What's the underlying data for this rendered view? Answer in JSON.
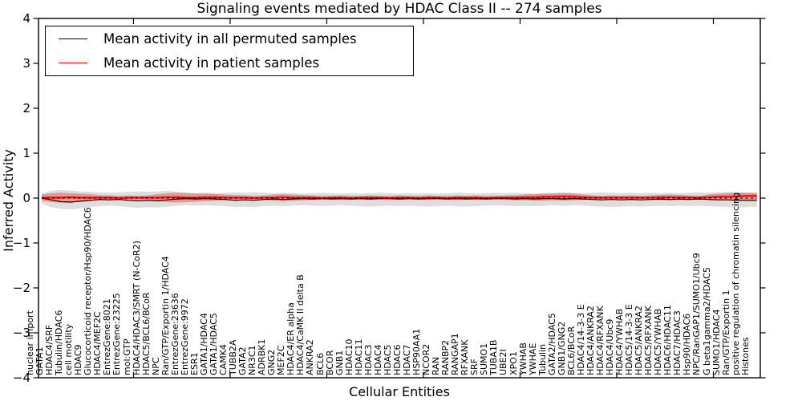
{
  "chart_data": {
    "type": "line",
    "title": "Signaling events mediated by HDAC Class II -- 274 samples",
    "xlabel": "Cellular Entities",
    "ylabel": "Inferred Activity",
    "ylim": [
      -4,
      4
    ],
    "yticks": [
      4,
      3,
      2,
      1,
      0,
      -1,
      -2,
      -3,
      -4
    ],
    "ytick_labels": [
      "4",
      "3",
      "2",
      "1",
      "0",
      "−1",
      "−2",
      "−3",
      "−4"
    ],
    "grid": false,
    "legend_position": "upper left",
    "categories": [
      "nuclear import",
      "GATA1",
      "HDAC4/SRF",
      "Tubulin/HDAC6",
      "cell motility",
      "HDAC9",
      "Glucocorticoid receptor/Hsp90/HDAC6",
      "HDAC4/MEF2C",
      "EntrezGene:8021",
      "EntrezGene:23225",
      "mol:GTP",
      "HDAC4/HDAC3/SMRT (N-CoR2)",
      "HDAC5/BCL6/BCoR",
      "NPC",
      "Ran/GTP/Exportin 1/HDAC4",
      "EntrezGene:23636",
      "EntrezGene:9972",
      "ESR1",
      "GATA1/HDAC4",
      "GATA1/HDAC5",
      "CAMK4",
      "TUBB2A",
      "GATA2",
      "NR3C1",
      "ADRBK1",
      "GNG2",
      "MEF2C",
      "HDAC4/ER alpha",
      "HDAC4/CaMK II delta B",
      "ANKRA2",
      "BCL6",
      "BCOR",
      "GNB1",
      "HDAC10",
      "HDAC11",
      "HDAC3",
      "HDAC4",
      "HDAC5",
      "HDAC6",
      "HDAC7",
      "HSP90AA1",
      "NCOR2",
      "RAN",
      "RANBP2",
      "RANGAP1",
      "RFXANK",
      "SRF",
      "SUMO1",
      "TUBA1B",
      "UBE2I",
      "XPO1",
      "YWHAB",
      "YWHAE",
      "Tubulin",
      "GATA2/HDAC5",
      "GNB1/GNG2",
      "BCL6/BCoR",
      "HDAC4/14-3-3 E",
      "HDAC4/ANKRA2",
      "HDAC4/RFXANK",
      "HDAC4/Ubc9",
      "HDAC4/YWHAB",
      "HDAC5/14-3-3 E",
      "HDAC5/ANKRA2",
      "HDAC5/RFXANK",
      "HDAC5/YWHAB",
      "HDAC6/HDAC11",
      "HDAC7/HDAC3",
      "Hsp90/HDAC6",
      "NPC/RanGAP1/SUMO1/Ubc9",
      "G beta1gamma2/HDAC5",
      "SUMO1/HDAC4",
      "Ran/GTP/Exportin 1",
      "positive regulation of chromatin silencing",
      "Histones"
    ],
    "series": [
      {
        "name": "Mean activity in all permuted samples",
        "color": "#000000",
        "values": [
          0.0,
          -0.04,
          -0.08,
          -0.09,
          -0.07,
          -0.05,
          -0.03,
          -0.04,
          -0.03,
          -0.05,
          -0.06,
          -0.05,
          -0.06,
          -0.04,
          -0.02,
          -0.01,
          -0.02,
          -0.01,
          -0.02,
          -0.03,
          -0.05,
          -0.04,
          -0.05,
          -0.03,
          -0.02,
          -0.03,
          -0.02,
          -0.01,
          -0.02,
          -0.01,
          -0.02,
          -0.01,
          -0.02,
          -0.01,
          -0.02,
          -0.01,
          -0.01,
          -0.02,
          -0.01,
          -0.02,
          -0.01,
          -0.01,
          -0.02,
          -0.01,
          -0.02,
          -0.01,
          -0.02,
          -0.01,
          -0.01,
          -0.02,
          -0.01,
          -0.02,
          -0.01,
          -0.01,
          -0.02,
          -0.01,
          -0.02,
          -0.03,
          -0.04,
          -0.03,
          -0.04,
          -0.03,
          -0.04,
          -0.03,
          -0.02,
          -0.03,
          -0.02,
          -0.03,
          -0.02,
          -0.03,
          -0.04,
          -0.04,
          -0.05,
          -0.05,
          -0.05
        ]
      },
      {
        "name": "Mean activity in patient samples",
        "color": "#ff0000",
        "values": [
          0.01,
          0.01,
          0.01,
          0.02,
          0.01,
          0.01,
          0.01,
          0.01,
          0.0,
          0.01,
          0.01,
          0.01,
          0.01,
          0.02,
          0.02,
          0.01,
          0.01,
          0.02,
          0.02,
          0.01,
          0.01,
          0.01,
          0.0,
          0.01,
          0.01,
          0.02,
          0.01,
          0.01,
          0.01,
          0.0,
          0.01,
          0.01,
          0.0,
          0.01,
          0.01,
          0.01,
          0.0,
          0.01,
          0.01,
          0.0,
          0.01,
          0.01,
          0.0,
          0.01,
          0.01,
          0.01,
          0.0,
          0.01,
          0.01,
          0.01,
          0.02,
          0.02,
          0.03,
          0.03,
          0.04,
          0.03,
          0.02,
          0.01,
          0.01,
          0.01,
          0.01,
          0.01,
          0.01,
          0.01,
          0.02,
          0.02,
          0.02,
          0.01,
          0.01,
          0.02,
          0.03,
          0.03,
          0.04,
          0.05,
          0.05
        ]
      }
    ],
    "bands": [
      {
        "name": "permuted-band",
        "color": "#000000",
        "opacity": 0.13,
        "upper": [
          0.1,
          0.16,
          0.18,
          0.17,
          0.15,
          0.14,
          0.13,
          0.12,
          0.13,
          0.14,
          0.15,
          0.14,
          0.15,
          0.16,
          0.14,
          0.12,
          0.11,
          0.12,
          0.11,
          0.12,
          0.13,
          0.12,
          0.13,
          0.12,
          0.11,
          0.12,
          0.11,
          0.1,
          0.11,
          0.12,
          0.11,
          0.1,
          0.11,
          0.1,
          0.11,
          0.12,
          0.11,
          0.1,
          0.11,
          0.1,
          0.11,
          0.1,
          0.11,
          0.12,
          0.11,
          0.1,
          0.11,
          0.12,
          0.11,
          0.12,
          0.11,
          0.1,
          0.11,
          0.12,
          0.13,
          0.12,
          0.11,
          0.12,
          0.13,
          0.12,
          0.11,
          0.12,
          0.11,
          0.12,
          0.11,
          0.12,
          0.11,
          0.12,
          0.13,
          0.12,
          0.13,
          0.14,
          0.13,
          0.12,
          0.11
        ],
        "lower": [
          -0.12,
          -0.2,
          -0.24,
          -0.25,
          -0.23,
          -0.2,
          -0.18,
          -0.17,
          -0.18,
          -0.2,
          -0.22,
          -0.2,
          -0.21,
          -0.19,
          -0.17,
          -0.16,
          -0.17,
          -0.16,
          -0.17,
          -0.18,
          -0.2,
          -0.19,
          -0.2,
          -0.18,
          -0.17,
          -0.18,
          -0.17,
          -0.16,
          -0.17,
          -0.18,
          -0.17,
          -0.16,
          -0.17,
          -0.18,
          -0.19,
          -0.18,
          -0.17,
          -0.18,
          -0.17,
          -0.18,
          -0.19,
          -0.18,
          -0.17,
          -0.18,
          -0.19,
          -0.18,
          -0.17,
          -0.16,
          -0.17,
          -0.18,
          -0.17,
          -0.18,
          -0.17,
          -0.16,
          -0.17,
          -0.16,
          -0.17,
          -0.18,
          -0.19,
          -0.2,
          -0.19,
          -0.18,
          -0.19,
          -0.18,
          -0.17,
          -0.18,
          -0.17,
          -0.18,
          -0.17,
          -0.18,
          -0.19,
          -0.2,
          -0.21,
          -0.2,
          -0.19
        ]
      },
      {
        "name": "patient-band",
        "color": "#ff0000",
        "opacity": 0.32,
        "upper": [
          0.08,
          0.11,
          0.12,
          0.11,
          0.1,
          0.09,
          0.07,
          0.06,
          0.05,
          0.06,
          0.05,
          0.06,
          0.09,
          0.11,
          0.12,
          0.11,
          0.1,
          0.1,
          0.09,
          0.08,
          0.07,
          0.06,
          0.05,
          0.06,
          0.08,
          0.09,
          0.08,
          0.07,
          0.06,
          0.05,
          0.05,
          0.06,
          0.05,
          0.05,
          0.06,
          0.05,
          0.05,
          0.06,
          0.05,
          0.05,
          0.06,
          0.05,
          0.05,
          0.06,
          0.05,
          0.06,
          0.05,
          0.05,
          0.06,
          0.07,
          0.08,
          0.09,
          0.1,
          0.1,
          0.11,
          0.1,
          0.08,
          0.06,
          0.05,
          0.06,
          0.05,
          0.06,
          0.05,
          0.06,
          0.07,
          0.08,
          0.07,
          0.06,
          0.05,
          0.08,
          0.1,
          0.11,
          0.12,
          0.12,
          0.12
        ],
        "lower": [
          -0.06,
          -0.09,
          -0.1,
          -0.09,
          -0.08,
          -0.07,
          -0.05,
          -0.04,
          -0.03,
          -0.04,
          -0.03,
          -0.04,
          -0.07,
          -0.09,
          -0.1,
          -0.09,
          -0.08,
          -0.07,
          -0.06,
          -0.05,
          -0.05,
          -0.04,
          -0.03,
          -0.04,
          -0.06,
          -0.07,
          -0.06,
          -0.05,
          -0.04,
          -0.03,
          -0.03,
          -0.04,
          -0.03,
          -0.03,
          -0.04,
          -0.03,
          -0.03,
          -0.04,
          -0.03,
          -0.03,
          -0.04,
          -0.03,
          -0.03,
          -0.04,
          -0.03,
          -0.04,
          -0.03,
          -0.03,
          -0.04,
          -0.05,
          -0.05,
          -0.06,
          -0.06,
          -0.05,
          -0.06,
          -0.05,
          -0.04,
          -0.03,
          -0.03,
          -0.04,
          -0.03,
          -0.04,
          -0.03,
          -0.04,
          -0.05,
          -0.05,
          -0.04,
          -0.04,
          -0.03,
          -0.04,
          -0.05,
          -0.05,
          -0.06,
          -0.06,
          -0.06
        ]
      }
    ],
    "zero_line": {
      "value": 0,
      "style": "dashed",
      "color": "#000000"
    }
  },
  "legend": {
    "permuted": "Mean activity in all permuted samples",
    "patient": "Mean activity in patient samples"
  }
}
